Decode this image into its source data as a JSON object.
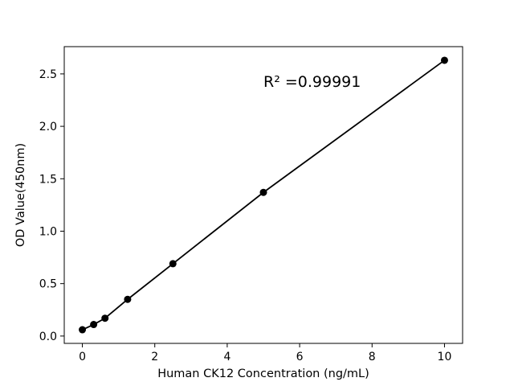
{
  "figure": {
    "background": "#ffffff"
  },
  "chart_data": {
    "type": "line",
    "x": [
      0,
      0.3125,
      0.625,
      1.25,
      2.5,
      5,
      10
    ],
    "y": [
      0.06,
      0.11,
      0.17,
      0.35,
      0.69,
      1.37,
      2.63
    ],
    "title": "",
    "xlabel": "Human CK12 Concentration (ng/mL)",
    "ylabel": "OD Value(450nm)",
    "xlim": [
      -0.5,
      10.5
    ],
    "ylim": [
      -0.07,
      2.76
    ],
    "xticks": [
      0,
      2,
      4,
      6,
      8,
      10
    ],
    "xtick_labels": [
      "0",
      "2",
      "4",
      "6",
      "8",
      "10"
    ],
    "yticks": [
      0.0,
      0.5,
      1.0,
      1.5,
      2.0,
      2.5
    ],
    "ytick_labels": [
      "0.0",
      "0.5",
      "1.0",
      "1.5",
      "2.0",
      "2.5"
    ],
    "annotation": {
      "text": "R² =0.99991",
      "x": 5.0,
      "y": 2.42
    },
    "grid": false,
    "legend": "none",
    "marker": "circle",
    "colors": {
      "line": "#000000",
      "marker": "#000000",
      "text": "#000000",
      "background": "#ffffff"
    }
  }
}
